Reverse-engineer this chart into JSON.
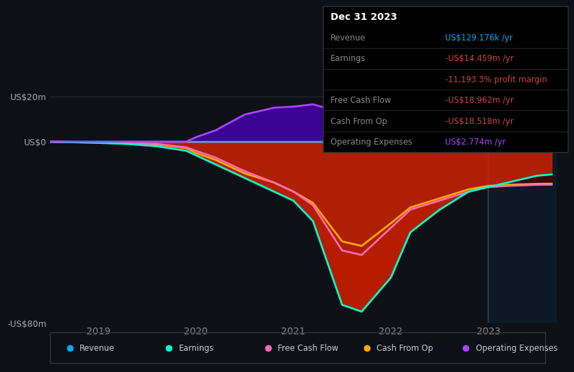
{
  "bg_color": "#0d1117",
  "plot_bg_color": "#0d1117",
  "ylim": [
    -80,
    25
  ],
  "xlim": [
    2018.5,
    2023.7
  ],
  "yticks": [
    20,
    0,
    -80
  ],
  "ytick_labels": [
    "US$20m",
    "US$0",
    "-US$80m"
  ],
  "xticks": [
    2019,
    2020,
    2021,
    2022,
    2023
  ],
  "xtick_labels": [
    "2019",
    "2020",
    "2021",
    "2022",
    "2023"
  ],
  "line_colors": {
    "revenue": "#00aaff",
    "earnings": "#00ffcc",
    "free_cash_flow": "#ff69b4",
    "cash_from_op": "#ffaa00",
    "operating_expenses": "#aa44ff"
  },
  "fill_color_earnings": "#cc2200",
  "fill_color_opex_top": "#4400aa",
  "fill_color_deep": "#550000",
  "vertical_line_x": 2023.0,
  "grid_color": "#1e2530",
  "legend_items": [
    {
      "label": "Revenue",
      "color": "#00aaff"
    },
    {
      "label": "Earnings",
      "color": "#00ffcc"
    },
    {
      "label": "Free Cash Flow",
      "color": "#ff69b4"
    },
    {
      "label": "Cash From Op",
      "color": "#ffaa00"
    },
    {
      "label": "Operating Expenses",
      "color": "#aa44ff"
    }
  ],
  "info_rows": [
    {
      "label": "Dec 31 2023",
      "value": "",
      "label_color": "#ffffff",
      "value_color": "#ffffff",
      "is_title": true
    },
    {
      "label": "Revenue",
      "value": "US$129.176k /yr",
      "label_color": "#888888",
      "value_color": "#00aaff",
      "is_title": false
    },
    {
      "label": "Earnings",
      "value": "-US$14.459m /yr",
      "label_color": "#888888",
      "value_color": "#cc4444",
      "is_title": false
    },
    {
      "label": "",
      "value": "-11,193.3% profit margin",
      "label_color": "#888888",
      "value_color": "#cc4444",
      "is_title": false
    },
    {
      "label": "Free Cash Flow",
      "value": "-US$18.962m /yr",
      "label_color": "#888888",
      "value_color": "#cc4444",
      "is_title": false
    },
    {
      "label": "Cash From Op",
      "value": "-US$18.518m /yr",
      "label_color": "#888888",
      "value_color": "#cc4444",
      "is_title": false
    },
    {
      "label": "Operating Expenses",
      "value": "US$2.774m /yr",
      "label_color": "#888888",
      "value_color": "#aa44ff",
      "is_title": false
    }
  ]
}
